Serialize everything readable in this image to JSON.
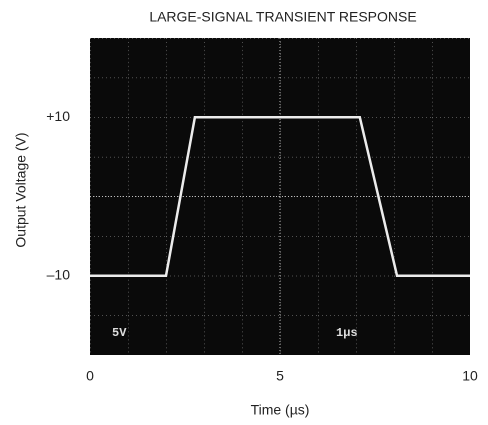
{
  "chart_data": {
    "type": "line",
    "title": "LARGE-SIGNAL TRANSIENT RESPONSE",
    "x_label": "Time (µs)",
    "y_label": "Output Voltage (V)",
    "annotations": [
      "5V",
      "1µs"
    ],
    "series": [
      {
        "color": "#ececec",
        "x": [
          0,
          2.0,
          2.76,
          2.9,
          7.1,
          8.08,
          10
        ],
        "values": [
          -10,
          -10,
          10,
          10,
          10,
          -10,
          -10
        ]
      }
    ],
    "xlim": [
      0,
      10
    ],
    "xticks": [
      0,
      5,
      10
    ],
    "ylim": [
      -20,
      20
    ],
    "yticks": [
      {
        "value": 10,
        "label": "+10"
      },
      {
        "value": -10,
        "label": "–10"
      }
    ]
  }
}
